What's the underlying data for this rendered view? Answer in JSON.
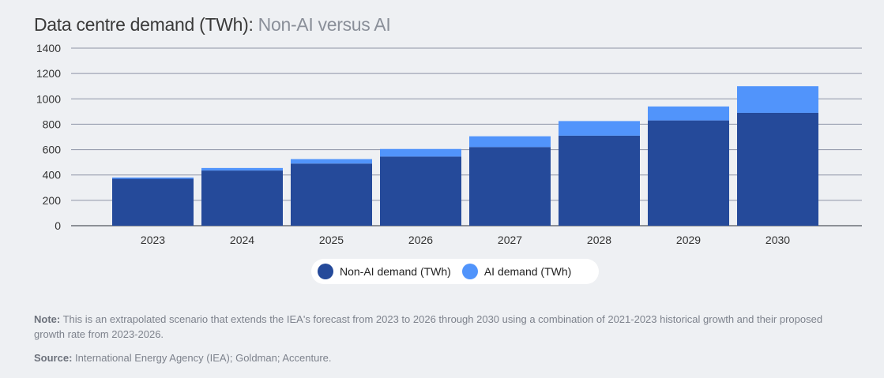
{
  "header": {
    "title": "Data centre demand (TWh):",
    "subtitle": "Non-AI versus AI"
  },
  "colors": {
    "non_ai": "#254a9a",
    "ai": "#5194fb",
    "grid": "#8e94a6",
    "text": "#333333"
  },
  "chart_data": {
    "type": "bar",
    "stacked": true,
    "categories": [
      "2023",
      "2024",
      "2025",
      "2026",
      "2027",
      "2028",
      "2029",
      "2030"
    ],
    "series": [
      {
        "name": "Non-AI demand (TWh)",
        "values": [
          370,
          435,
          490,
          545,
          620,
          710,
          830,
          890
        ]
      },
      {
        "name": "AI demand (TWh)",
        "values": [
          10,
          20,
          35,
          60,
          85,
          115,
          110,
          210
        ]
      }
    ],
    "y_ticks": [
      "0",
      "200",
      "400",
      "600",
      "800",
      "1000",
      "1200",
      "1400"
    ],
    "ylim": [
      0,
      1400
    ],
    "grid": true,
    "legend_position": "bottom-center"
  },
  "legend": {
    "non_ai_label": "Non-AI demand (TWh)",
    "ai_label": "AI demand (TWh)"
  },
  "footer": {
    "note_label": "Note:",
    "note_text": "This is an extrapolated scenario that extends the IEA's forecast from 2023 to 2026 through 2030 using a combination of 2021-2023 historical growth and their proposed growth rate from 2023-2026.",
    "source_label": "Source:",
    "source_text": "International Energy Agency (IEA); Goldman; Accenture."
  }
}
